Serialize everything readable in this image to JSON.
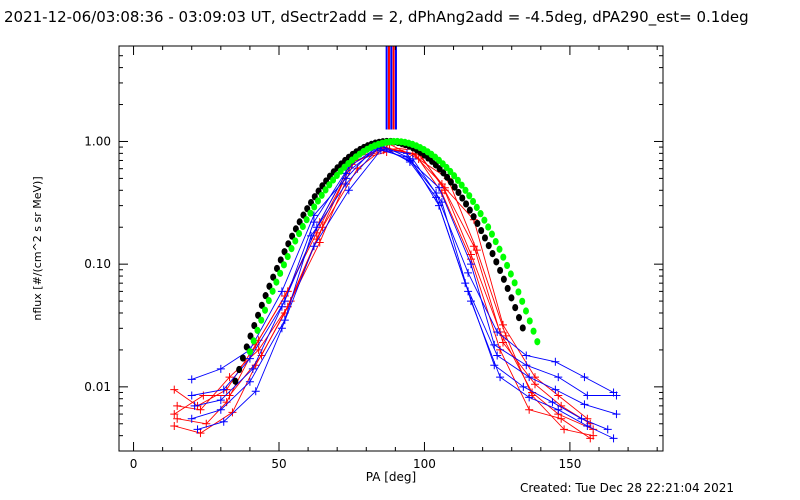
{
  "header": {
    "title": "2021-12-06/03:08:36 - 03:09:03 UT, dSectr2add = 2, dPhAng2add = -4.5deg, dPA290_est=  0.1deg",
    "created": "Created: Tue Dec 28 22:21:04 2021"
  },
  "chart_data": {
    "type": "line",
    "title": "",
    "xlabel": "PA [deg]",
    "ylabel": "nflux [#/(cm^2 s sr MeV)]",
    "xlim": [
      -5,
      182
    ],
    "ylim": [
      0.003,
      6.0
    ],
    "ylog": true,
    "xticks": [
      0,
      50,
      100,
      150
    ],
    "xtick_labels": [
      "0",
      "50",
      "100",
      "150"
    ],
    "yticks": [
      0.01,
      0.1,
      1.0
    ],
    "ytick_labels": [
      "0.01",
      "0.10",
      "1.00"
    ],
    "colors": {
      "red": "#ff0000",
      "blue": "#0000ff",
      "black": "#000000",
      "green": "#00ff00"
    },
    "vertical_lines": [
      {
        "x": 87.0,
        "color": "#0000ff"
      },
      {
        "x": 87.8,
        "color": "#ff0000"
      },
      {
        "x": 88.6,
        "color": "#0000ff"
      },
      {
        "x": 89.4,
        "color": "#ff0000"
      },
      {
        "x": 90.2,
        "color": "#0000ff"
      }
    ],
    "series": [
      {
        "color": "#ff0000",
        "x": [
          14,
          22,
          32,
          42,
          52,
          63,
          75,
          86,
          96,
          106,
          116,
          126,
          137,
          146,
          158
        ],
        "y": [
          0.0095,
          0.007,
          0.0095,
          0.022,
          0.055,
          0.18,
          0.65,
          0.9,
          0.8,
          0.45,
          0.12,
          0.028,
          0.009,
          0.006,
          0.0045
        ]
      },
      {
        "color": "#ff0000",
        "x": [
          15,
          23,
          33,
          43,
          53,
          64,
          76,
          87,
          97,
          107,
          117,
          127,
          138,
          147,
          157
        ],
        "y": [
          0.007,
          0.0065,
          0.012,
          0.02,
          0.045,
          0.15,
          0.7,
          0.82,
          0.88,
          0.4,
          0.14,
          0.023,
          0.0105,
          0.007,
          0.005
        ]
      },
      {
        "color": "#ff0000",
        "x": [
          14,
          24,
          33,
          44,
          54,
          65,
          77,
          88,
          98,
          108,
          118,
          128,
          137,
          148,
          158
        ],
        "y": [
          0.006,
          0.0085,
          0.0085,
          0.018,
          0.05,
          0.2,
          0.6,
          0.95,
          0.72,
          0.5,
          0.13,
          0.026,
          0.0085,
          0.0045,
          0.004
        ]
      },
      {
        "color": "#ff0000",
        "x": [
          15,
          25,
          32,
          43,
          53,
          64,
          75,
          86,
          96,
          107,
          117,
          127,
          138,
          146,
          156
        ],
        "y": [
          0.0055,
          0.005,
          0.0075,
          0.024,
          0.06,
          0.22,
          0.68,
          0.85,
          0.9,
          0.42,
          0.23,
          0.032,
          0.012,
          0.0085,
          0.0055
        ]
      },
      {
        "color": "#ff0000",
        "x": [
          14,
          23,
          34,
          42,
          52,
          63,
          76,
          87,
          97,
          106,
          116,
          126,
          136,
          147,
          157
        ],
        "y": [
          0.0048,
          0.0042,
          0.0062,
          0.015,
          0.04,
          0.16,
          0.74,
          0.88,
          0.78,
          0.38,
          0.11,
          0.02,
          0.0065,
          0.0055,
          0.0038
        ]
      },
      {
        "color": "#0000ff",
        "x": [
          20,
          30,
          40,
          51,
          62,
          73,
          84,
          94,
          104,
          115,
          125,
          135,
          145,
          155,
          165
        ],
        "y": [
          0.0115,
          0.014,
          0.02,
          0.06,
          0.25,
          0.5,
          0.95,
          0.75,
          0.38,
          0.085,
          0.028,
          0.018,
          0.016,
          0.012,
          0.009
        ]
      },
      {
        "color": "#0000ff",
        "x": [
          20,
          31,
          40,
          52,
          62,
          74,
          84,
          95,
          105,
          116,
          124,
          135,
          146,
          156,
          166
        ],
        "y": [
          0.0085,
          0.0095,
          0.017,
          0.05,
          0.22,
          0.62,
          0.9,
          0.7,
          0.42,
          0.1,
          0.022,
          0.015,
          0.012,
          0.0085,
          0.0085
        ]
      },
      {
        "color": "#0000ff",
        "x": [
          21,
          30,
          41,
          51,
          63,
          73,
          85,
          95,
          104,
          114,
          125,
          136,
          145,
          155,
          166
        ],
        "y": [
          0.007,
          0.0078,
          0.014,
          0.045,
          0.2,
          0.55,
          0.92,
          0.68,
          0.35,
          0.07,
          0.018,
          0.012,
          0.0095,
          0.0072,
          0.006
        ]
      },
      {
        "color": "#0000ff",
        "x": [
          20,
          30,
          40,
          52,
          61,
          73,
          84,
          94,
          105,
          115,
          124,
          134,
          144,
          154,
          163
        ],
        "y": [
          0.0055,
          0.0065,
          0.011,
          0.035,
          0.17,
          0.45,
          0.88,
          0.8,
          0.3,
          0.06,
          0.015,
          0.01,
          0.0075,
          0.0055,
          0.0045
        ]
      },
      {
        "color": "#0000ff",
        "x": [
          22,
          31,
          42,
          51,
          62,
          74,
          85,
          96,
          106,
          116,
          126,
          136,
          146,
          156,
          165
        ],
        "y": [
          0.0045,
          0.0052,
          0.0092,
          0.03,
          0.14,
          0.4,
          0.85,
          0.72,
          0.32,
          0.05,
          0.012,
          0.0082,
          0.0065,
          0.0048,
          0.0038
        ]
      },
      {
        "color": "#000000",
        "style": "dots",
        "curve": {
          "center": 87.5,
          "sigma": 17.5,
          "peak": 1.0,
          "xmin": 35,
          "xmax": 135,
          "step": 1.3
        }
      },
      {
        "color": "#00ff00",
        "style": "dots",
        "curve": {
          "center": 90.0,
          "sigma": 17.8,
          "peak": 1.0,
          "xmin": 40,
          "xmax": 140,
          "step": 1.3
        }
      }
    ]
  }
}
